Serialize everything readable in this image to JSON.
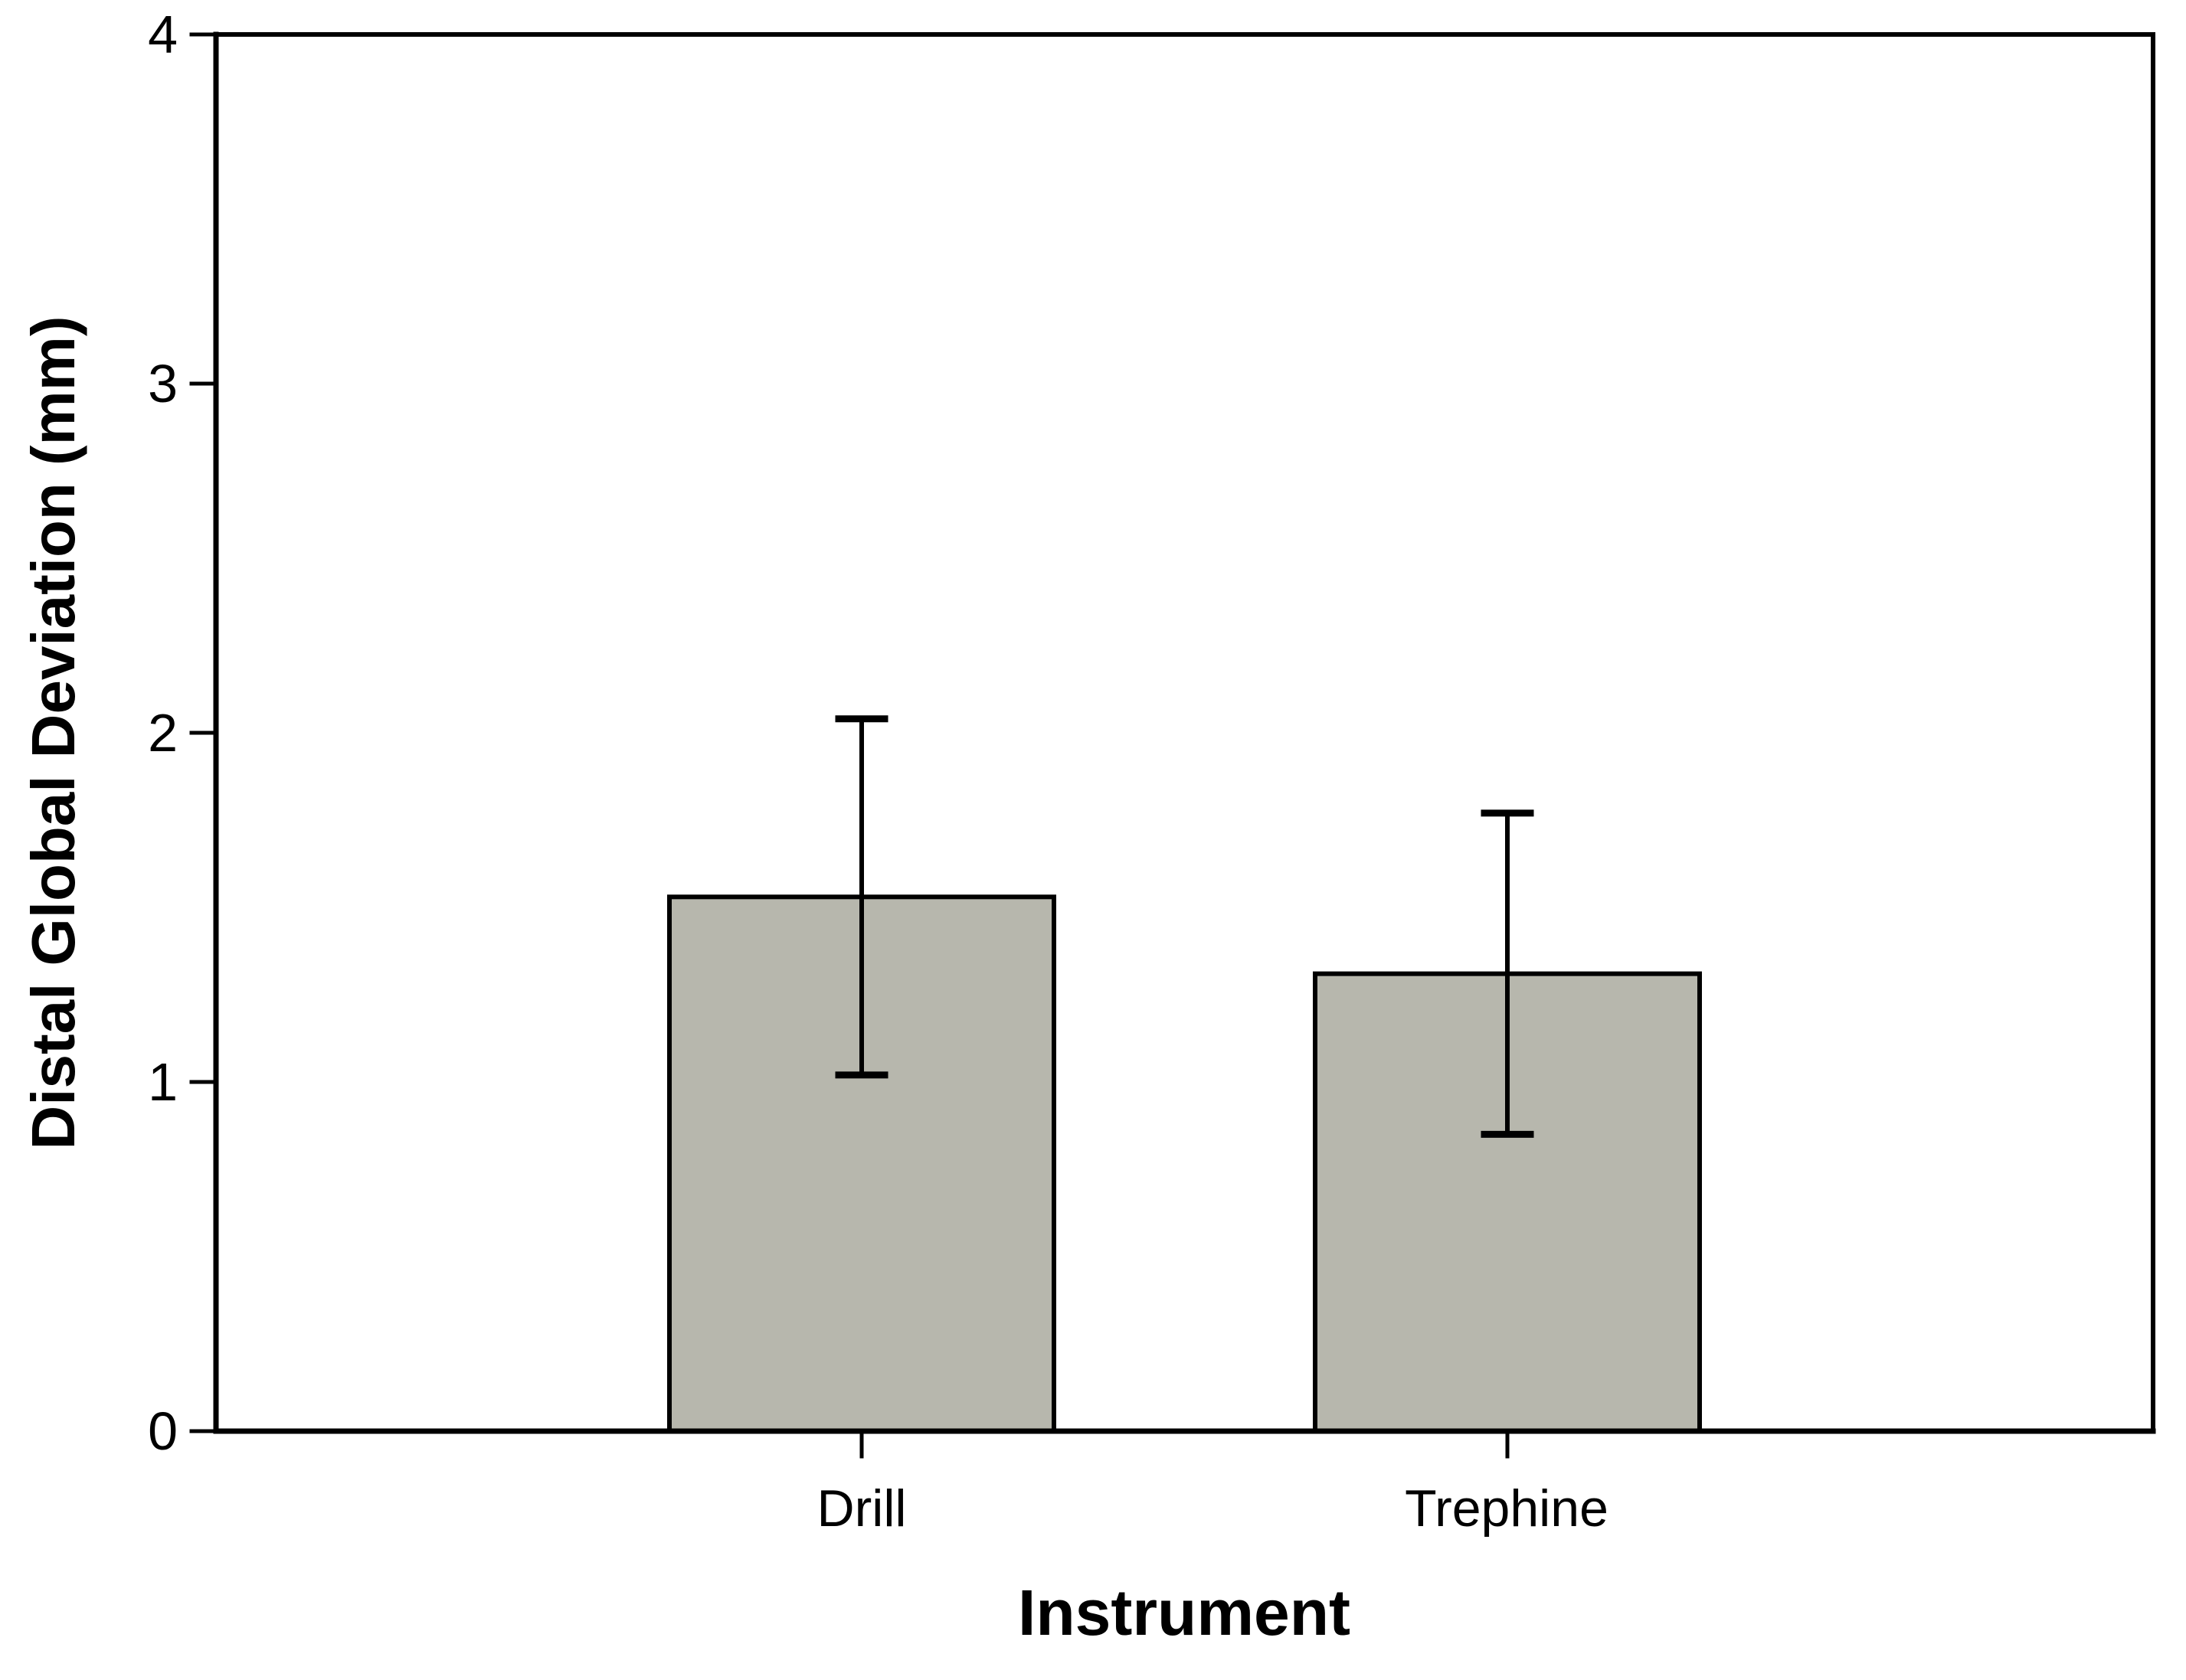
{
  "figure": {
    "background_color": "#ffffff"
  },
  "axes": {
    "y_tick_labels_top_to_bottom": [
      "4",
      "3",
      "2",
      "1",
      "0"
    ]
  },
  "chart_data": {
    "type": "bar",
    "categories": [
      "Drill",
      "Trephine"
    ],
    "values": [
      1.53,
      1.31
    ],
    "error_upper": [
      2.04,
      1.77
    ],
    "error_lower": [
      1.02,
      0.85
    ],
    "title": "",
    "xlabel": "Instrument",
    "ylabel": "Distal Global Deviation (mm)",
    "ylim": [
      0,
      4
    ],
    "yticks": [
      0,
      1,
      2,
      3,
      4
    ],
    "grid": false,
    "legend": "none",
    "bar_fill_color": "#b7b7ad",
    "bar_edge_color": "#000000",
    "error_bar_color": "#000000",
    "axis_color": "#000000",
    "text_color": "#000000"
  }
}
